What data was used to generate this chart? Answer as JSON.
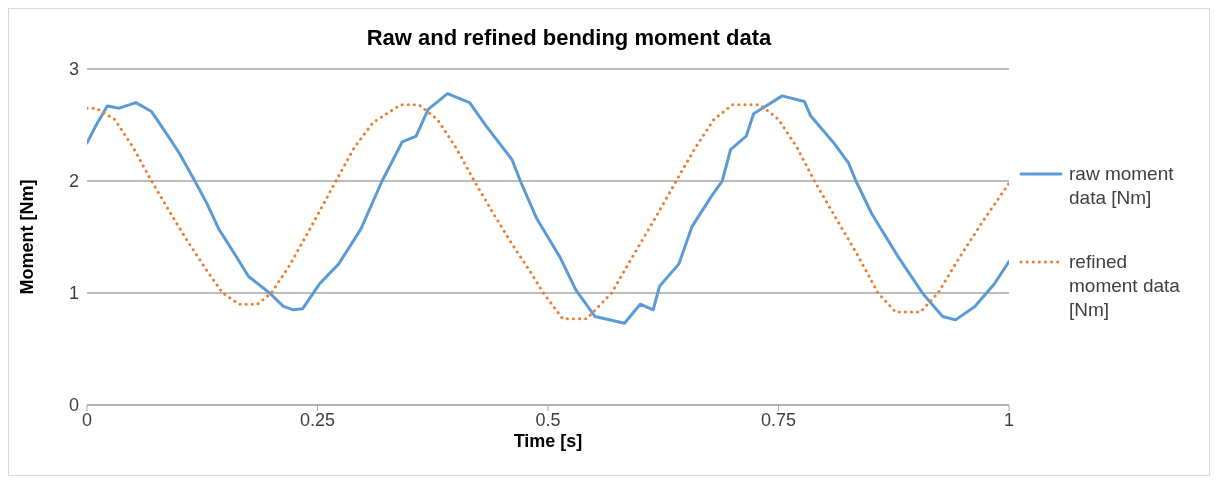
{
  "chart_data": {
    "type": "line",
    "title": "Raw and refined bending moment data",
    "xlabel": "Time [s]",
    "ylabel": "Moment [Nm]",
    "xlim": [
      0,
      1
    ],
    "xticks": [
      0,
      0.25,
      0.5,
      0.75,
      1
    ],
    "ylim": [
      0,
      3
    ],
    "yticks": [
      0,
      1,
      2,
      3
    ],
    "grid": "y",
    "legend": "right",
    "series": [
      {
        "name": "raw moment data [Nm]",
        "color": "#5b9bd5",
        "line_style": "solid",
        "x": [
          0,
          0.01,
          0.022,
          0.035,
          0.053,
          0.07,
          0.088,
          0.1,
          0.117,
          0.13,
          0.143,
          0.16,
          0.175,
          0.198,
          0.213,
          0.224,
          0.234,
          0.252,
          0.273,
          0.297,
          0.32,
          0.342,
          0.357,
          0.37,
          0.391,
          0.415,
          0.433,
          0.461,
          0.47,
          0.488,
          0.513,
          0.53,
          0.551,
          0.583,
          0.6,
          0.614,
          0.621,
          0.642,
          0.656,
          0.677,
          0.689,
          0.698,
          0.715,
          0.723,
          0.754,
          0.778,
          0.785,
          0.81,
          0.826,
          0.834,
          0.851,
          0.88,
          0.907,
          0.928,
          0.942,
          0.963,
          0.984,
          1
        ],
        "values": [
          2.34,
          2.5,
          2.67,
          2.65,
          2.7,
          2.62,
          2.4,
          2.25,
          2,
          1.8,
          1.57,
          1.35,
          1.15,
          1,
          0.88,
          0.85,
          0.86,
          1.08,
          1.26,
          1.57,
          2,
          2.35,
          2.4,
          2.64,
          2.78,
          2.7,
          2.49,
          2.19,
          2,
          1.66,
          1.32,
          1.03,
          0.79,
          0.73,
          0.9,
          0.85,
          1.06,
          1.26,
          1.59,
          1.86,
          2,
          2.28,
          2.4,
          2.6,
          2.76,
          2.71,
          2.58,
          2.34,
          2.16,
          2,
          1.71,
          1.32,
          0.99,
          0.79,
          0.76,
          0.88,
          1.08,
          1.28
        ]
      },
      {
        "name": "refined moment data [Nm]",
        "color": "#ed7d31",
        "line_style": "dotted",
        "x": [
          0,
          0.01,
          0.03,
          0.05,
          0.07,
          0.09,
          0.11,
          0.13,
          0.147,
          0.165,
          0.185,
          0.2,
          0.22,
          0.245,
          0.27,
          0.29,
          0.31,
          0.34,
          0.36,
          0.38,
          0.4,
          0.42,
          0.44,
          0.46,
          0.48,
          0.495,
          0.516,
          0.542,
          0.569,
          0.59,
          0.615,
          0.639,
          0.66,
          0.68,
          0.7,
          0.73,
          0.75,
          0.77,
          0.789,
          0.81,
          0.835,
          0.858,
          0.877,
          0.904,
          0.923,
          0.945,
          0.97,
          1
        ],
        "values": [
          2.65,
          2.65,
          2.55,
          2.3,
          2,
          1.72,
          1.45,
          1.2,
          1,
          0.9,
          0.9,
          1,
          1.25,
          1.62,
          2,
          2.3,
          2.52,
          2.68,
          2.68,
          2.55,
          2.3,
          2,
          1.72,
          1.45,
          1.2,
          1,
          0.77,
          0.77,
          1,
          1.3,
          1.65,
          2,
          2.3,
          2.55,
          2.68,
          2.68,
          2.55,
          2.3,
          2,
          1.7,
          1.35,
          1,
          0.83,
          0.83,
          1,
          1.3,
          1.62,
          1.98
        ]
      }
    ]
  }
}
